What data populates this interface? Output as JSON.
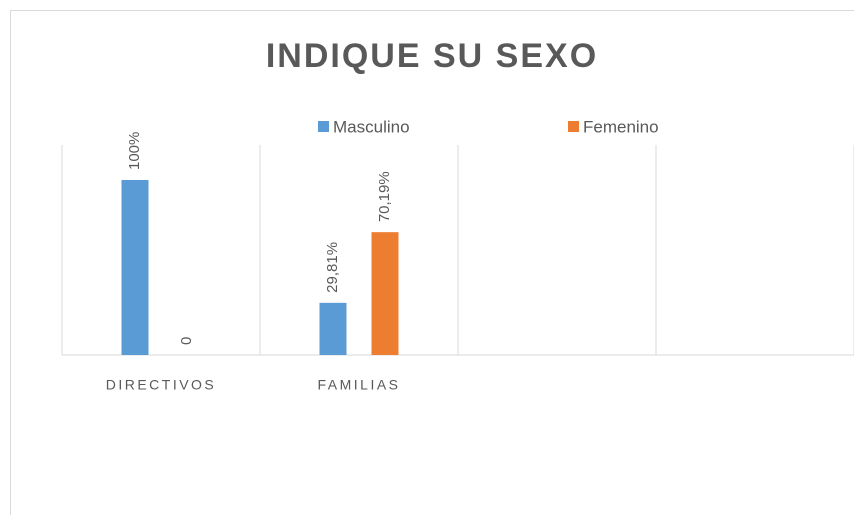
{
  "chart_data": {
    "type": "bar",
    "title": "INDIQUE SU SEXO",
    "categories": [
      "DIRECTIVOS",
      "FAMILIAS",
      null,
      null
    ],
    "series": [
      {
        "name": "Masculino",
        "color": "#5b9bd5",
        "values": [
          100,
          29.81,
          null,
          null
        ],
        "value_labels": [
          "100%",
          "29,81%",
          null,
          null
        ]
      },
      {
        "name": "Femenino",
        "color": "#ed7d31",
        "values": [
          0,
          70.19,
          null,
          null
        ],
        "value_labels": [
          "0",
          "70,19%",
          null,
          null
        ]
      }
    ],
    "ylim": [
      0,
      120
    ],
    "legend": "top"
  }
}
